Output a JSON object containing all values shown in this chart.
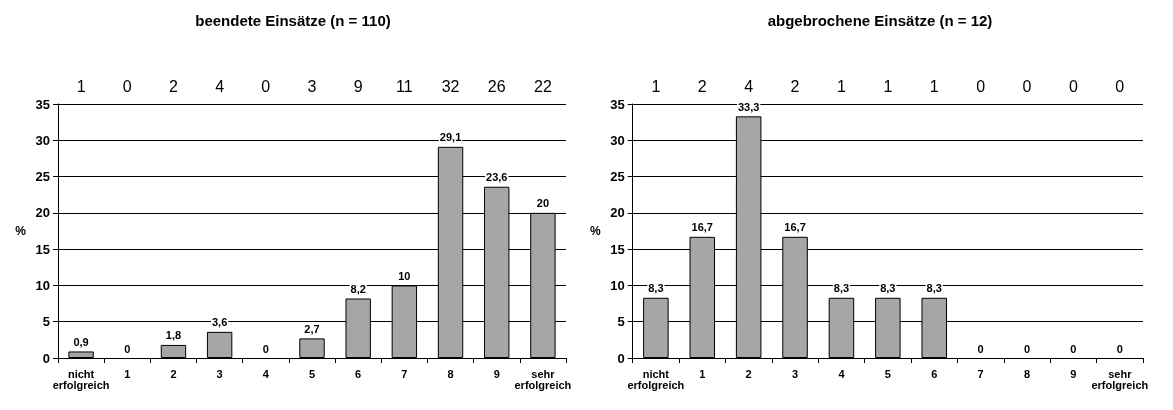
{
  "chart_data": [
    {
      "type": "bar",
      "title": "beendete Einsätze (n = 110)",
      "ylabel": "%",
      "categories": [
        "nicht erfolgreich",
        "1",
        "2",
        "3",
        "4",
        "5",
        "6",
        "7",
        "8",
        "9",
        "sehr erfolgreich"
      ],
      "values": [
        0.9,
        0,
        1.8,
        3.6,
        0,
        2.7,
        8.2,
        10,
        29.1,
        23.6,
        20
      ],
      "value_labels": [
        "0,9",
        "0",
        "1,8",
        "3,6",
        "0",
        "2,7",
        "8,2",
        "10",
        "29,1",
        "23,6",
        "20"
      ],
      "color": "#a6a6a6",
      "ylim": [
        0,
        35
      ],
      "yticks": [
        0,
        5,
        10,
        15,
        20,
        25,
        30,
        35
      ],
      "grid": "y",
      "annotations": [
        "1",
        "0",
        "2",
        "4",
        "0",
        "3",
        "9",
        "11",
        "32",
        "26",
        "22"
      ]
    },
    {
      "type": "bar",
      "title": "abgebrochene Einsätze (n = 12)",
      "ylabel": "%",
      "categories": [
        "nicht erfolgreich",
        "1",
        "2",
        "3",
        "4",
        "5",
        "6",
        "7",
        "8",
        "9",
        "sehr erfolgreich"
      ],
      "values": [
        8.3,
        16.7,
        33.3,
        16.7,
        8.3,
        8.3,
        8.3,
        0,
        0,
        0,
        0
      ],
      "value_labels": [
        "8,3",
        "16,7",
        "33,3",
        "16,7",
        "8,3",
        "8,3",
        "8,3",
        "0",
        "0",
        "0",
        "0"
      ],
      "color": "#a6a6a6",
      "ylim": [
        0,
        35
      ],
      "yticks": [
        0,
        5,
        10,
        15,
        20,
        25,
        30,
        35
      ],
      "grid": "y",
      "annotations": [
        "1",
        "2",
        "4",
        "2",
        "1",
        "1",
        "1",
        "0",
        "0",
        "0",
        "0"
      ]
    }
  ]
}
